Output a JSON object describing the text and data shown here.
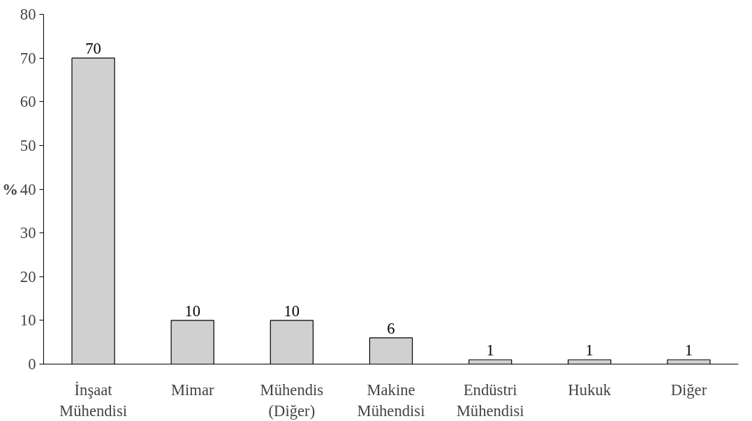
{
  "chart_data": {
    "type": "bar",
    "ylabel": "%",
    "categories": [
      "İnşaat Mühendisi",
      "Mimar",
      "Mühendis (Diğer)",
      "Makine Mühendisi",
      "Endüstri Mühendisi",
      "Hukuk",
      "Diğer"
    ],
    "values": [
      70,
      10,
      10,
      6,
      1,
      1,
      1
    ],
    "color": "#d0d0d0",
    "ylim": [
      0,
      80
    ],
    "yticks": [
      0,
      10,
      20,
      30,
      40,
      50,
      60,
      70,
      80
    ],
    "data_labels": true,
    "grid": false
  }
}
